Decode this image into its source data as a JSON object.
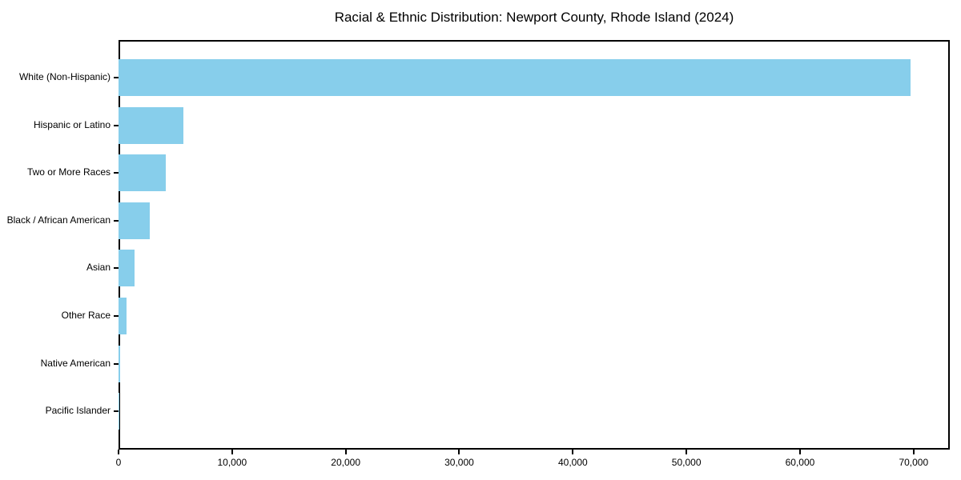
{
  "title": "Racial & Ethnic Distribution: Newport County, Rhode Island (2024)",
  "chart_data": {
    "type": "bar",
    "orientation": "horizontal",
    "title": "Racial & Ethnic Distribution: Newport County, Rhode Island (2024)",
    "xlabel": "",
    "ylabel": "",
    "categories": [
      "White (Non-Hispanic)",
      "Hispanic or Latino",
      "Two or More Races",
      "Black / African American",
      "Asian",
      "Other Race",
      "Native American",
      "Pacific Islander"
    ],
    "values": [
      69700,
      5700,
      4150,
      2750,
      1380,
      740,
      150,
      30
    ],
    "xlim": [
      0,
      73185
    ],
    "x_ticks": [
      0,
      10000,
      20000,
      30000,
      40000,
      50000,
      60000,
      70000
    ],
    "x_tick_labels": [
      "0",
      "10,000",
      "20,000",
      "30,000",
      "40,000",
      "50,000",
      "60,000",
      "70,000"
    ],
    "bar_color": "#87CEEB",
    "spine_color": "#000000",
    "background_color": "#ffffff",
    "grid": false,
    "legend": null
  }
}
